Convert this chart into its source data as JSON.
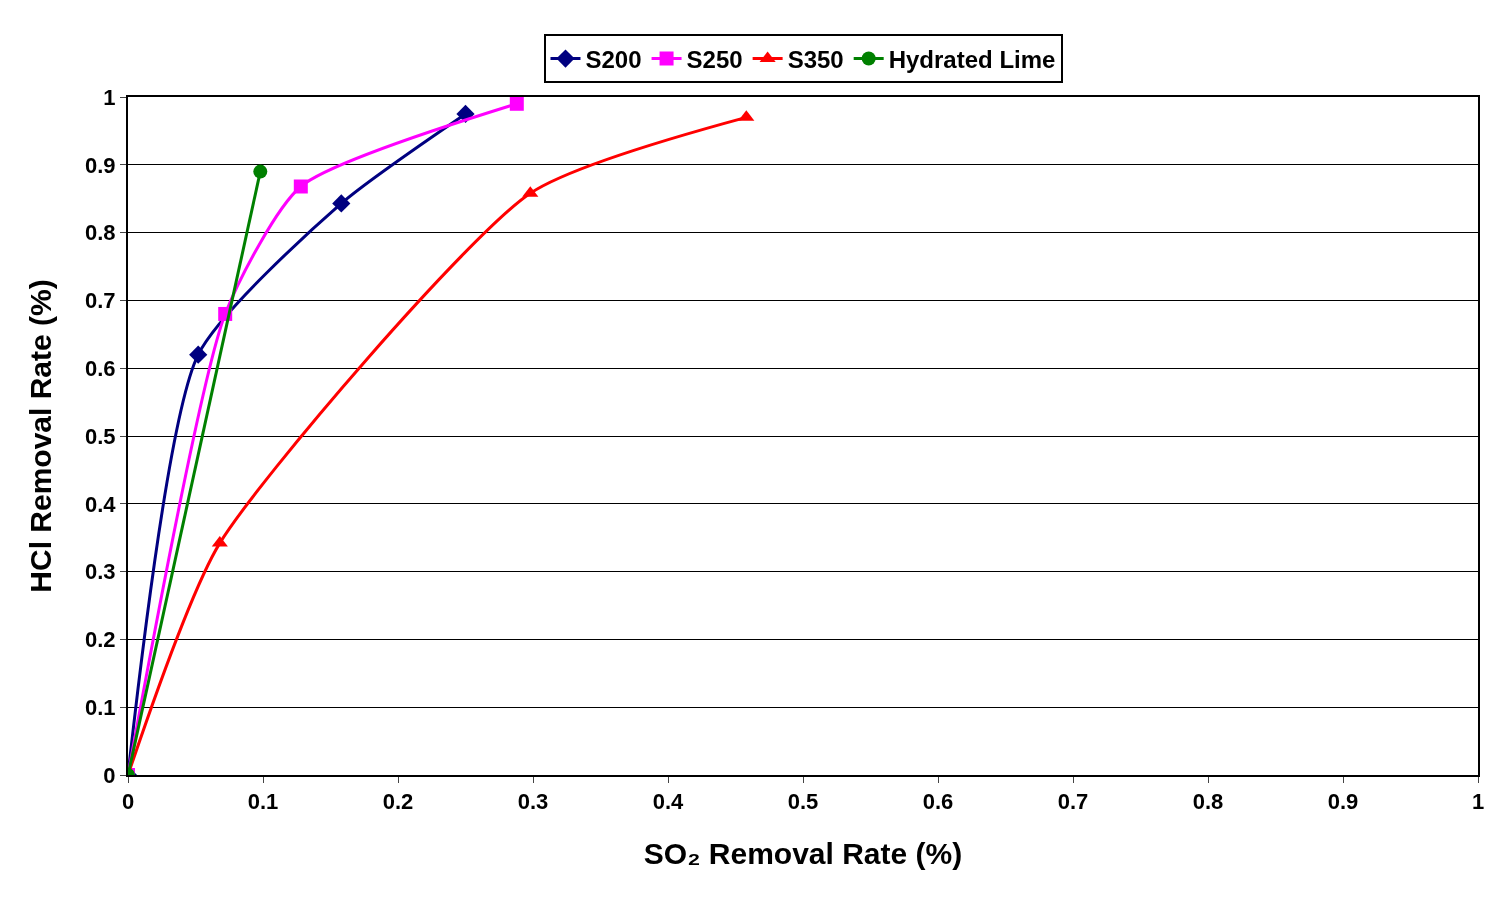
{
  "chart_data": {
    "type": "line",
    "xlabel": "SO₂ Removal Rate (%)",
    "ylabel": "HCl Removal Rate (%)",
    "xlim": [
      0,
      1
    ],
    "xticks": [
      0,
      0.1,
      0.2,
      0.3,
      0.4,
      0.5,
      0.6,
      0.7,
      0.8,
      0.9,
      1
    ],
    "ylim": [
      0,
      1
    ],
    "yticks": [
      0,
      0.1,
      0.2,
      0.3,
      0.4,
      0.5,
      0.6,
      0.7,
      0.8,
      0.9,
      1
    ],
    "grid": "y",
    "legend": "top",
    "line_style": "solid",
    "series": [
      {
        "name": "S200",
        "color": "#000080",
        "marker": "diamond",
        "x": [
          0,
          0.052,
          0.158,
          0.25
        ],
        "values": [
          0,
          0.62,
          0.843,
          0.975
        ]
      },
      {
        "name": "S250",
        "color": "#ff00ff",
        "marker": "square",
        "x": [
          0,
          0.072,
          0.128,
          0.288
        ],
        "values": [
          0,
          0.68,
          0.868,
          0.99
        ]
      },
      {
        "name": "S350",
        "color": "#ff0000",
        "marker": "triangle",
        "x": [
          0,
          0.068,
          0.298,
          0.458
        ],
        "values": [
          0,
          0.342,
          0.858,
          0.97
        ]
      },
      {
        "name": "Hydrated Lime",
        "color": "#008000",
        "marker": "circle",
        "x": [
          0,
          0.098
        ],
        "values": [
          0,
          0.89
        ]
      }
    ]
  }
}
